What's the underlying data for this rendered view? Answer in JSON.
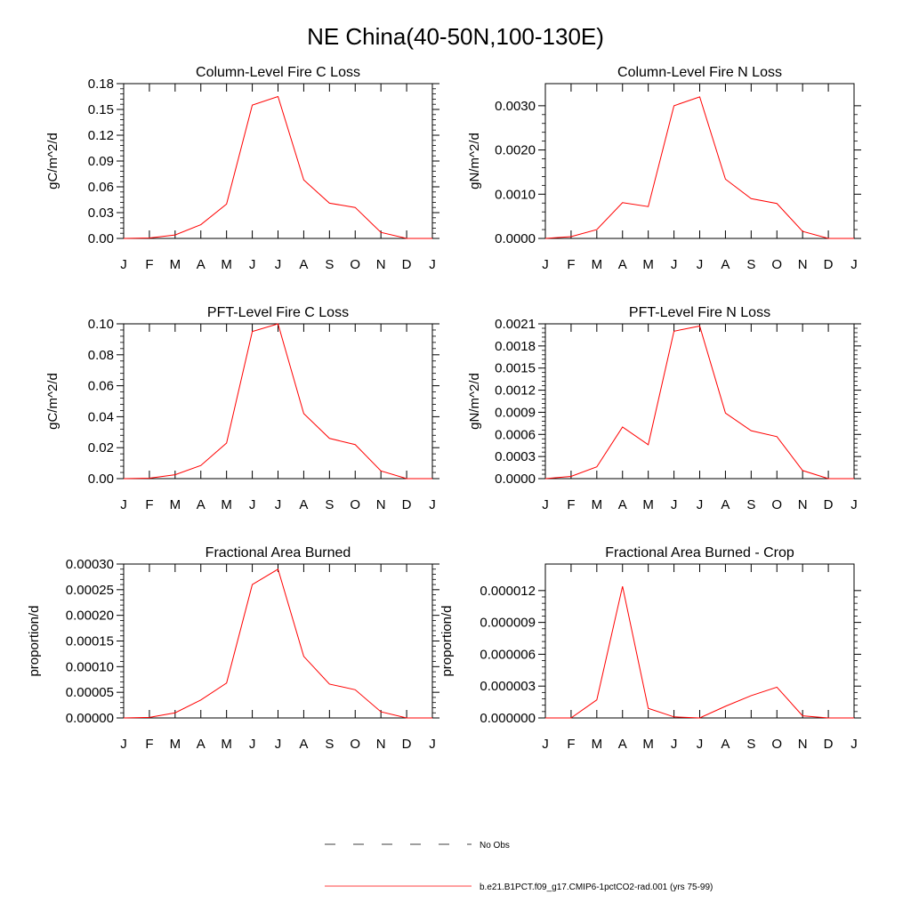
{
  "main_title": "NE China(40-50N,100-130E)",
  "legend": [
    {
      "label": "No Obs",
      "style": "dashed",
      "color": "#000000"
    },
    {
      "label": "b.e21.B1PCT.f09_g17.CMIP6-1pctCO2-rad.001 (yrs 75-99)",
      "style": "solid",
      "color": "#ff0000"
    }
  ],
  "line_color": "#ff0000",
  "chart_data": [
    {
      "type": "line",
      "title": "Column-Level Fire C Loss",
      "ylabel": "gC/m^2/d",
      "categories": [
        "J",
        "F",
        "M",
        "A",
        "M",
        "J",
        "J",
        "A",
        "S",
        "O",
        "N",
        "D",
        "J"
      ],
      "ylim": [
        0,
        0.18
      ],
      "yticks": [
        "0.00",
        "0.03",
        "0.06",
        "0.09",
        "0.12",
        "0.15",
        "0.18"
      ],
      "values": [
        0.0,
        0.0005,
        0.004,
        0.016,
        0.04,
        0.155,
        0.165,
        0.068,
        0.041,
        0.036,
        0.007,
        0.0,
        0.0
      ]
    },
    {
      "type": "line",
      "title": "Column-Level Fire N Loss",
      "ylabel": "gN/m^2/d",
      "categories": [
        "J",
        "F",
        "M",
        "A",
        "M",
        "J",
        "J",
        "A",
        "S",
        "O",
        "N",
        "D",
        "J"
      ],
      "ylim": [
        0,
        0.0035
      ],
      "yticks": [
        "0.0000",
        "0.0010",
        "0.0020",
        "0.0030"
      ],
      "values": [
        0.0,
        4e-05,
        0.0002,
        0.00081,
        0.00072,
        0.003,
        0.0032,
        0.00134,
        0.0009,
        0.00079,
        0.00016,
        0.0,
        0.0
      ]
    },
    {
      "type": "line",
      "title": "PFT-Level Fire C Loss",
      "ylabel": "gC/m^2/d",
      "categories": [
        "J",
        "F",
        "M",
        "A",
        "M",
        "J",
        "J",
        "A",
        "S",
        "O",
        "N",
        "D",
        "J"
      ],
      "ylim": [
        0,
        0.1
      ],
      "yticks": [
        "0.00",
        "0.02",
        "0.04",
        "0.06",
        "0.08",
        "0.10"
      ],
      "values": [
        0.0,
        0.0003,
        0.0025,
        0.0085,
        0.023,
        0.095,
        0.1,
        0.042,
        0.026,
        0.022,
        0.005,
        0.0,
        0.0
      ]
    },
    {
      "type": "line",
      "title": "PFT-Level Fire N Loss",
      "ylabel": "gN/m^2/d",
      "categories": [
        "J",
        "F",
        "M",
        "A",
        "M",
        "J",
        "J",
        "A",
        "S",
        "O",
        "N",
        "D",
        "J"
      ],
      "ylim": [
        0,
        0.0021
      ],
      "yticks": [
        "0.0000",
        "0.0003",
        "0.0006",
        "0.0009",
        "0.0012",
        "0.0015",
        "0.0018",
        "0.0021"
      ],
      "values": [
        0.0,
        3e-05,
        0.00016,
        0.0007,
        0.00046,
        0.002,
        0.00207,
        0.00089,
        0.00065,
        0.00057,
        0.00011,
        0.0,
        0.0
      ]
    },
    {
      "type": "line",
      "title": "Fractional Area Burned",
      "ylabel": "proportion/d",
      "categories": [
        "J",
        "F",
        "M",
        "A",
        "M",
        "J",
        "J",
        "A",
        "S",
        "O",
        "N",
        "D",
        "J"
      ],
      "ylim": [
        0,
        0.0003
      ],
      "yticks": [
        "0.00000",
        "0.00005",
        "0.00010",
        "0.00015",
        "0.00020",
        "0.00025",
        "0.00030"
      ],
      "values": [
        0.0,
        1e-06,
        1e-05,
        3.5e-05,
        6.8e-05,
        0.00026,
        0.00029,
        0.00012,
        6.6e-05,
        5.5e-05,
        1.2e-05,
        0.0,
        0.0
      ]
    },
    {
      "type": "line",
      "title": "Fractional Area Burned - Crop",
      "ylabel": "proportion/d",
      "categories": [
        "J",
        "F",
        "M",
        "A",
        "M",
        "J",
        "J",
        "A",
        "S",
        "O",
        "N",
        "D",
        "J"
      ],
      "ylim": [
        0,
        1.45e-05
      ],
      "yticks": [
        "0.000000",
        "0.000003",
        "0.000006",
        "0.000009",
        "0.000012"
      ],
      "values": [
        0.0,
        0.0,
        1.7e-06,
        1.24e-05,
        9e-07,
        1e-07,
        0.0,
        1.1e-06,
        2.1e-06,
        2.9e-06,
        2e-07,
        0.0,
        0.0
      ]
    }
  ]
}
